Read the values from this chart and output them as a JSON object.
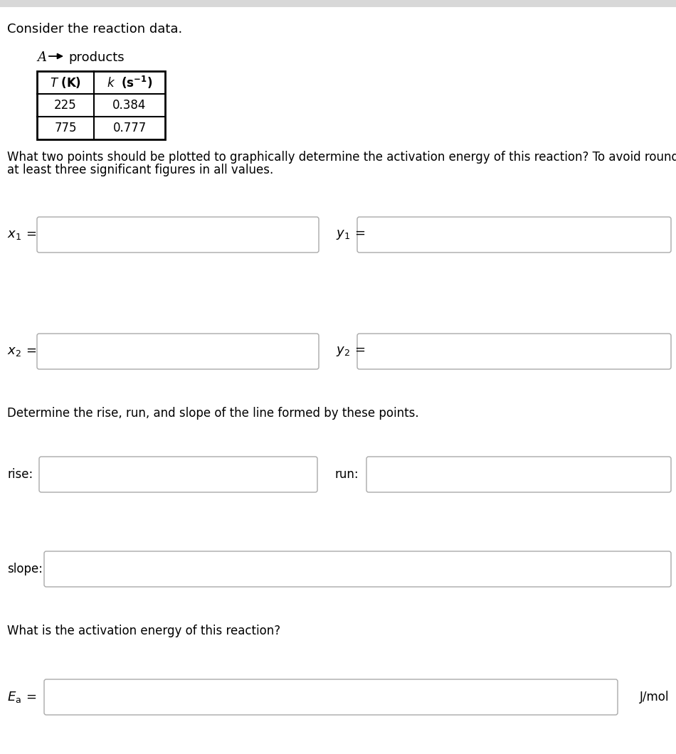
{
  "title": "Consider the reaction data.",
  "reaction_A": "A",
  "reaction_products": "products",
  "table_header_T": "T (K)",
  "table_header_k": "k (s⁻¹)",
  "table_data": [
    [
      "225",
      "0.384"
    ],
    [
      "775",
      "0.777"
    ]
  ],
  "q1_line1": "What two points should be plotted to graphically determine the activation energy of this reaction? To avoid rounding errors, use",
  "q1_line2": "at least three significant figures in all values.",
  "label_x1": "x₁ =",
  "label_y1": "y₁ =",
  "label_x2": "x₂ =",
  "label_y2": "y₂ =",
  "q2": "Determine the rise, run, and slope of the line formed by these points.",
  "label_rise": "rise:",
  "label_run": "run:",
  "label_slope": "slope:",
  "q3": "What is the activation energy of this reaction?",
  "label_Ea": "Eₐ =",
  "unit_Ea": "J/mol",
  "bg_color": "#ffffff",
  "box_edge_color": "#aaaaaa",
  "text_color": "#000000",
  "top_bar_color": "#d8d8d8"
}
